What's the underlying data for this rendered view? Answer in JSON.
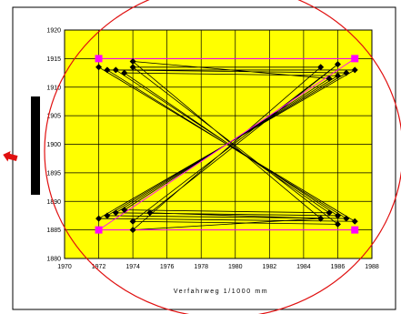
{
  "chart_data": {
    "type": "scatter",
    "title": "",
    "xlabel": "Verfahrweg 1/1000 mm",
    "ylabel": "",
    "xlim": [
      1970,
      1988
    ],
    "ylim": [
      1880,
      1920
    ],
    "x_ticks": [
      "1970",
      "1972",
      "1974",
      "1976",
      "1978",
      "1980",
      "1982",
      "1984",
      "1986",
      "1988"
    ],
    "y_ticks": [
      "1880",
      "1885",
      "1890",
      "1895",
      "1900",
      "1905",
      "1910",
      "1915",
      "1920"
    ],
    "grid": true,
    "legend": "none",
    "plot_background": "#ffff00",
    "grid_color": "#000000",
    "annotation_color": "#e01010",
    "series": [
      {
        "name": "",
        "marker": "diamond",
        "color": "#000000",
        "points": [
          [
            1972,
            1913.5
          ],
          [
            1987,
            1886.5
          ],
          [
            1972,
            1887
          ],
          [
            1987,
            1913
          ],
          [
            1972.5,
            1913
          ],
          [
            1986.5,
            1887
          ],
          [
            1972.5,
            1887.5
          ],
          [
            1986.5,
            1912.5
          ],
          [
            1973,
            1913
          ],
          [
            1986,
            1887.5
          ],
          [
            1973,
            1888
          ],
          [
            1986,
            1912
          ],
          [
            1973.5,
            1912.5
          ],
          [
            1985.5,
            1888
          ],
          [
            1973.5,
            1888.5
          ],
          [
            1985.5,
            1911.5
          ],
          [
            1974,
            1914.5
          ],
          [
            1985,
            1887
          ],
          [
            1974,
            1885
          ],
          [
            1985,
            1913.5
          ],
          [
            1974,
            1913.5
          ],
          [
            1986,
            1886
          ],
          [
            1974,
            1886.5
          ],
          [
            1986,
            1914
          ],
          [
            1975,
            1888
          ],
          [
            1985,
            1887
          ]
        ]
      },
      {
        "name": "",
        "marker": "square",
        "color": "#ff00ff",
        "points": [
          [
            1972,
            1915
          ],
          [
            1987,
            1915
          ],
          [
            1972,
            1885
          ],
          [
            1987,
            1885
          ]
        ]
      }
    ]
  }
}
